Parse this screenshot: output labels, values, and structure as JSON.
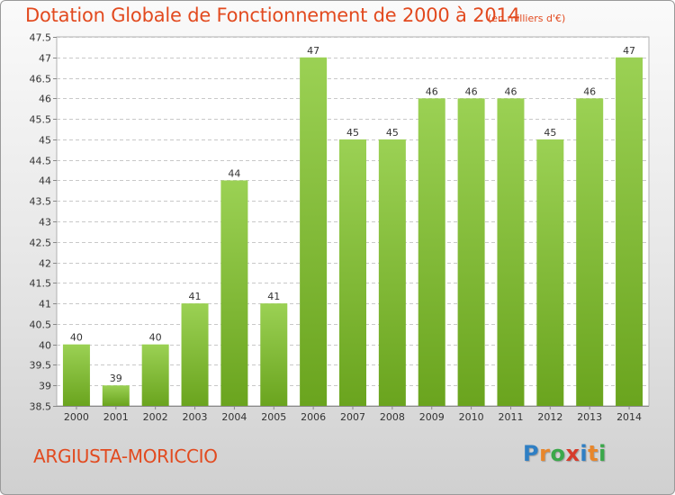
{
  "title": "Dotation Globale de Fonctionnement de 2000 à 2014",
  "subtitle": "(en milliers d'€)",
  "commune": "ARGIUSTA-MORICCIO",
  "logo": {
    "text": "Proxiti",
    "letters": [
      {
        "char": "P",
        "color": "#2f7fc4"
      },
      {
        "char": "r",
        "color": "#e8862b"
      },
      {
        "char": "o",
        "color": "#3aa84a"
      },
      {
        "char": "x",
        "color": "#d63b2b"
      },
      {
        "char": "i",
        "color": "#2f7fc4"
      },
      {
        "char": "t",
        "color": "#e8862b"
      },
      {
        "char": "i",
        "color": "#3aa84a"
      }
    ]
  },
  "colors": {
    "title": "#e24a1f",
    "bar_light": "#9bd154",
    "bar_dark": "#6aa41e",
    "grid": "#c8c8c8"
  },
  "chart_data": {
    "type": "bar",
    "categories": [
      "2000",
      "2001",
      "2002",
      "2003",
      "2004",
      "2005",
      "2006",
      "2007",
      "2008",
      "2009",
      "2010",
      "2011",
      "2012",
      "2013",
      "2014"
    ],
    "values": [
      40,
      39,
      40,
      41,
      44,
      41,
      47,
      45,
      45,
      46,
      46,
      46,
      45,
      46,
      47
    ],
    "data_labels": [
      "40",
      "39",
      "40",
      "41",
      "44",
      "41",
      "47",
      "45",
      "45",
      "46",
      "46",
      "46",
      "45",
      "46",
      "47"
    ],
    "ylim": [
      38.5,
      47.5
    ],
    "yticks": [
      "38.5",
      "39",
      "39.5",
      "40",
      "40.5",
      "41",
      "41.5",
      "42",
      "42.5",
      "43",
      "43.5",
      "44",
      "44.5",
      "45",
      "45.5",
      "46",
      "46.5",
      "47",
      "47.5"
    ],
    "grid": true,
    "xlabel": "",
    "ylabel": ""
  }
}
